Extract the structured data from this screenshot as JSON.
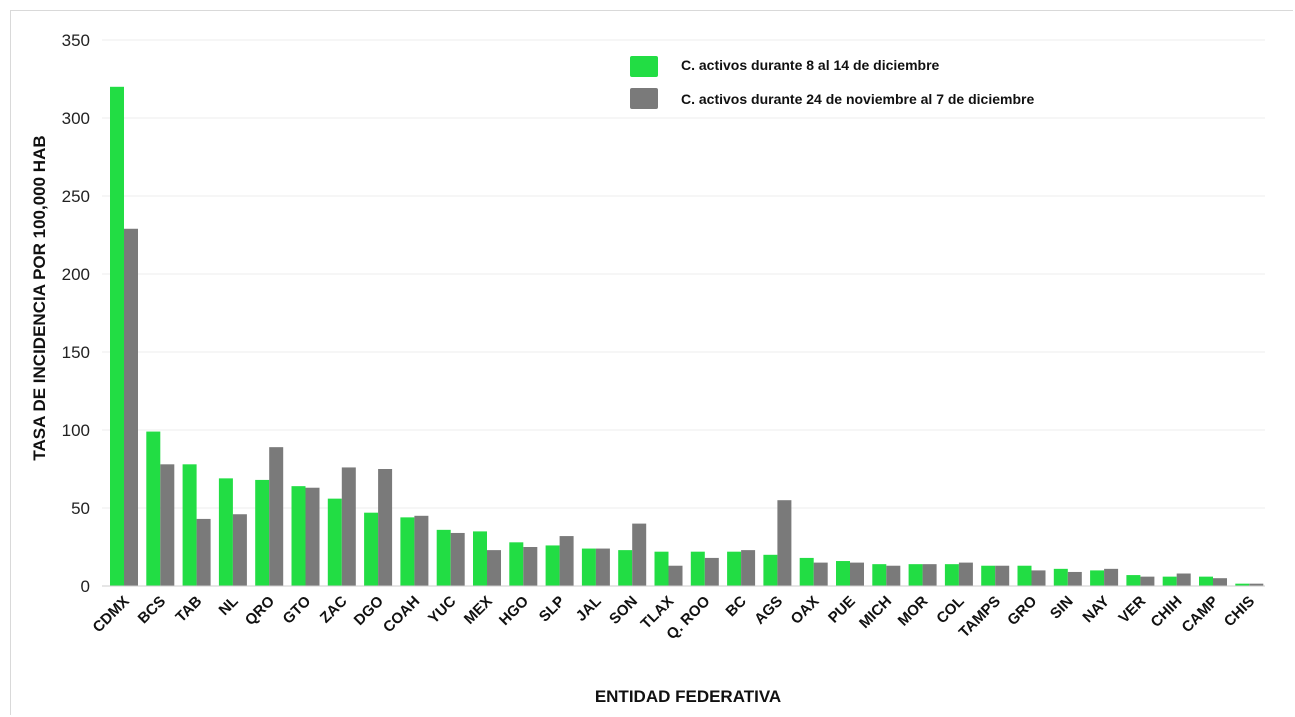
{
  "chart_data": {
    "type": "bar",
    "title": "",
    "xlabel": "ENTIDAD FEDERATIVA",
    "ylabel": "TASA DE INCIDENCIA  POR 100,000 HAB",
    "ylim": [
      0,
      350
    ],
    "yticks": [
      0,
      50,
      100,
      150,
      200,
      250,
      300,
      350
    ],
    "grid": true,
    "legend_position": "top-right",
    "categories": [
      "CDMX",
      "BCS",
      "TAB",
      "NL",
      "QRO",
      "GTO",
      "ZAC",
      "DGO",
      "COAH",
      "YUC",
      "MEX",
      "HGO",
      "SLP",
      "JAL",
      "SON",
      "TLAX",
      "Q. ROO",
      "BC",
      "AGS",
      "OAX",
      "PUE",
      "MICH",
      "MOR",
      "COL",
      "TAMPS",
      "GRO",
      "SIN",
      "NAY",
      "VER",
      "CHIH",
      "CAMP",
      "CHIS"
    ],
    "series": [
      {
        "name": "C. activos durante 8 al 14  de diciembre",
        "color": "#22dd44",
        "values": [
          320,
          99,
          78,
          69,
          68,
          64,
          56,
          47,
          44,
          36,
          35,
          28,
          26,
          24,
          23,
          22,
          22,
          22,
          20,
          18,
          16,
          14,
          14,
          14,
          13,
          13,
          11,
          10,
          7,
          6,
          6,
          1.5
        ]
      },
      {
        "name": "C. activos durante 24 de noviembre al 7 de diciembre",
        "color": "#7a7a7a",
        "values": [
          229,
          78,
          43,
          46,
          89,
          63,
          76,
          75,
          45,
          34,
          23,
          25,
          32,
          24,
          40,
          13,
          18,
          23,
          55,
          15,
          15,
          13,
          14,
          15,
          13,
          10,
          9,
          11,
          6,
          8,
          5,
          1.5
        ]
      }
    ]
  }
}
